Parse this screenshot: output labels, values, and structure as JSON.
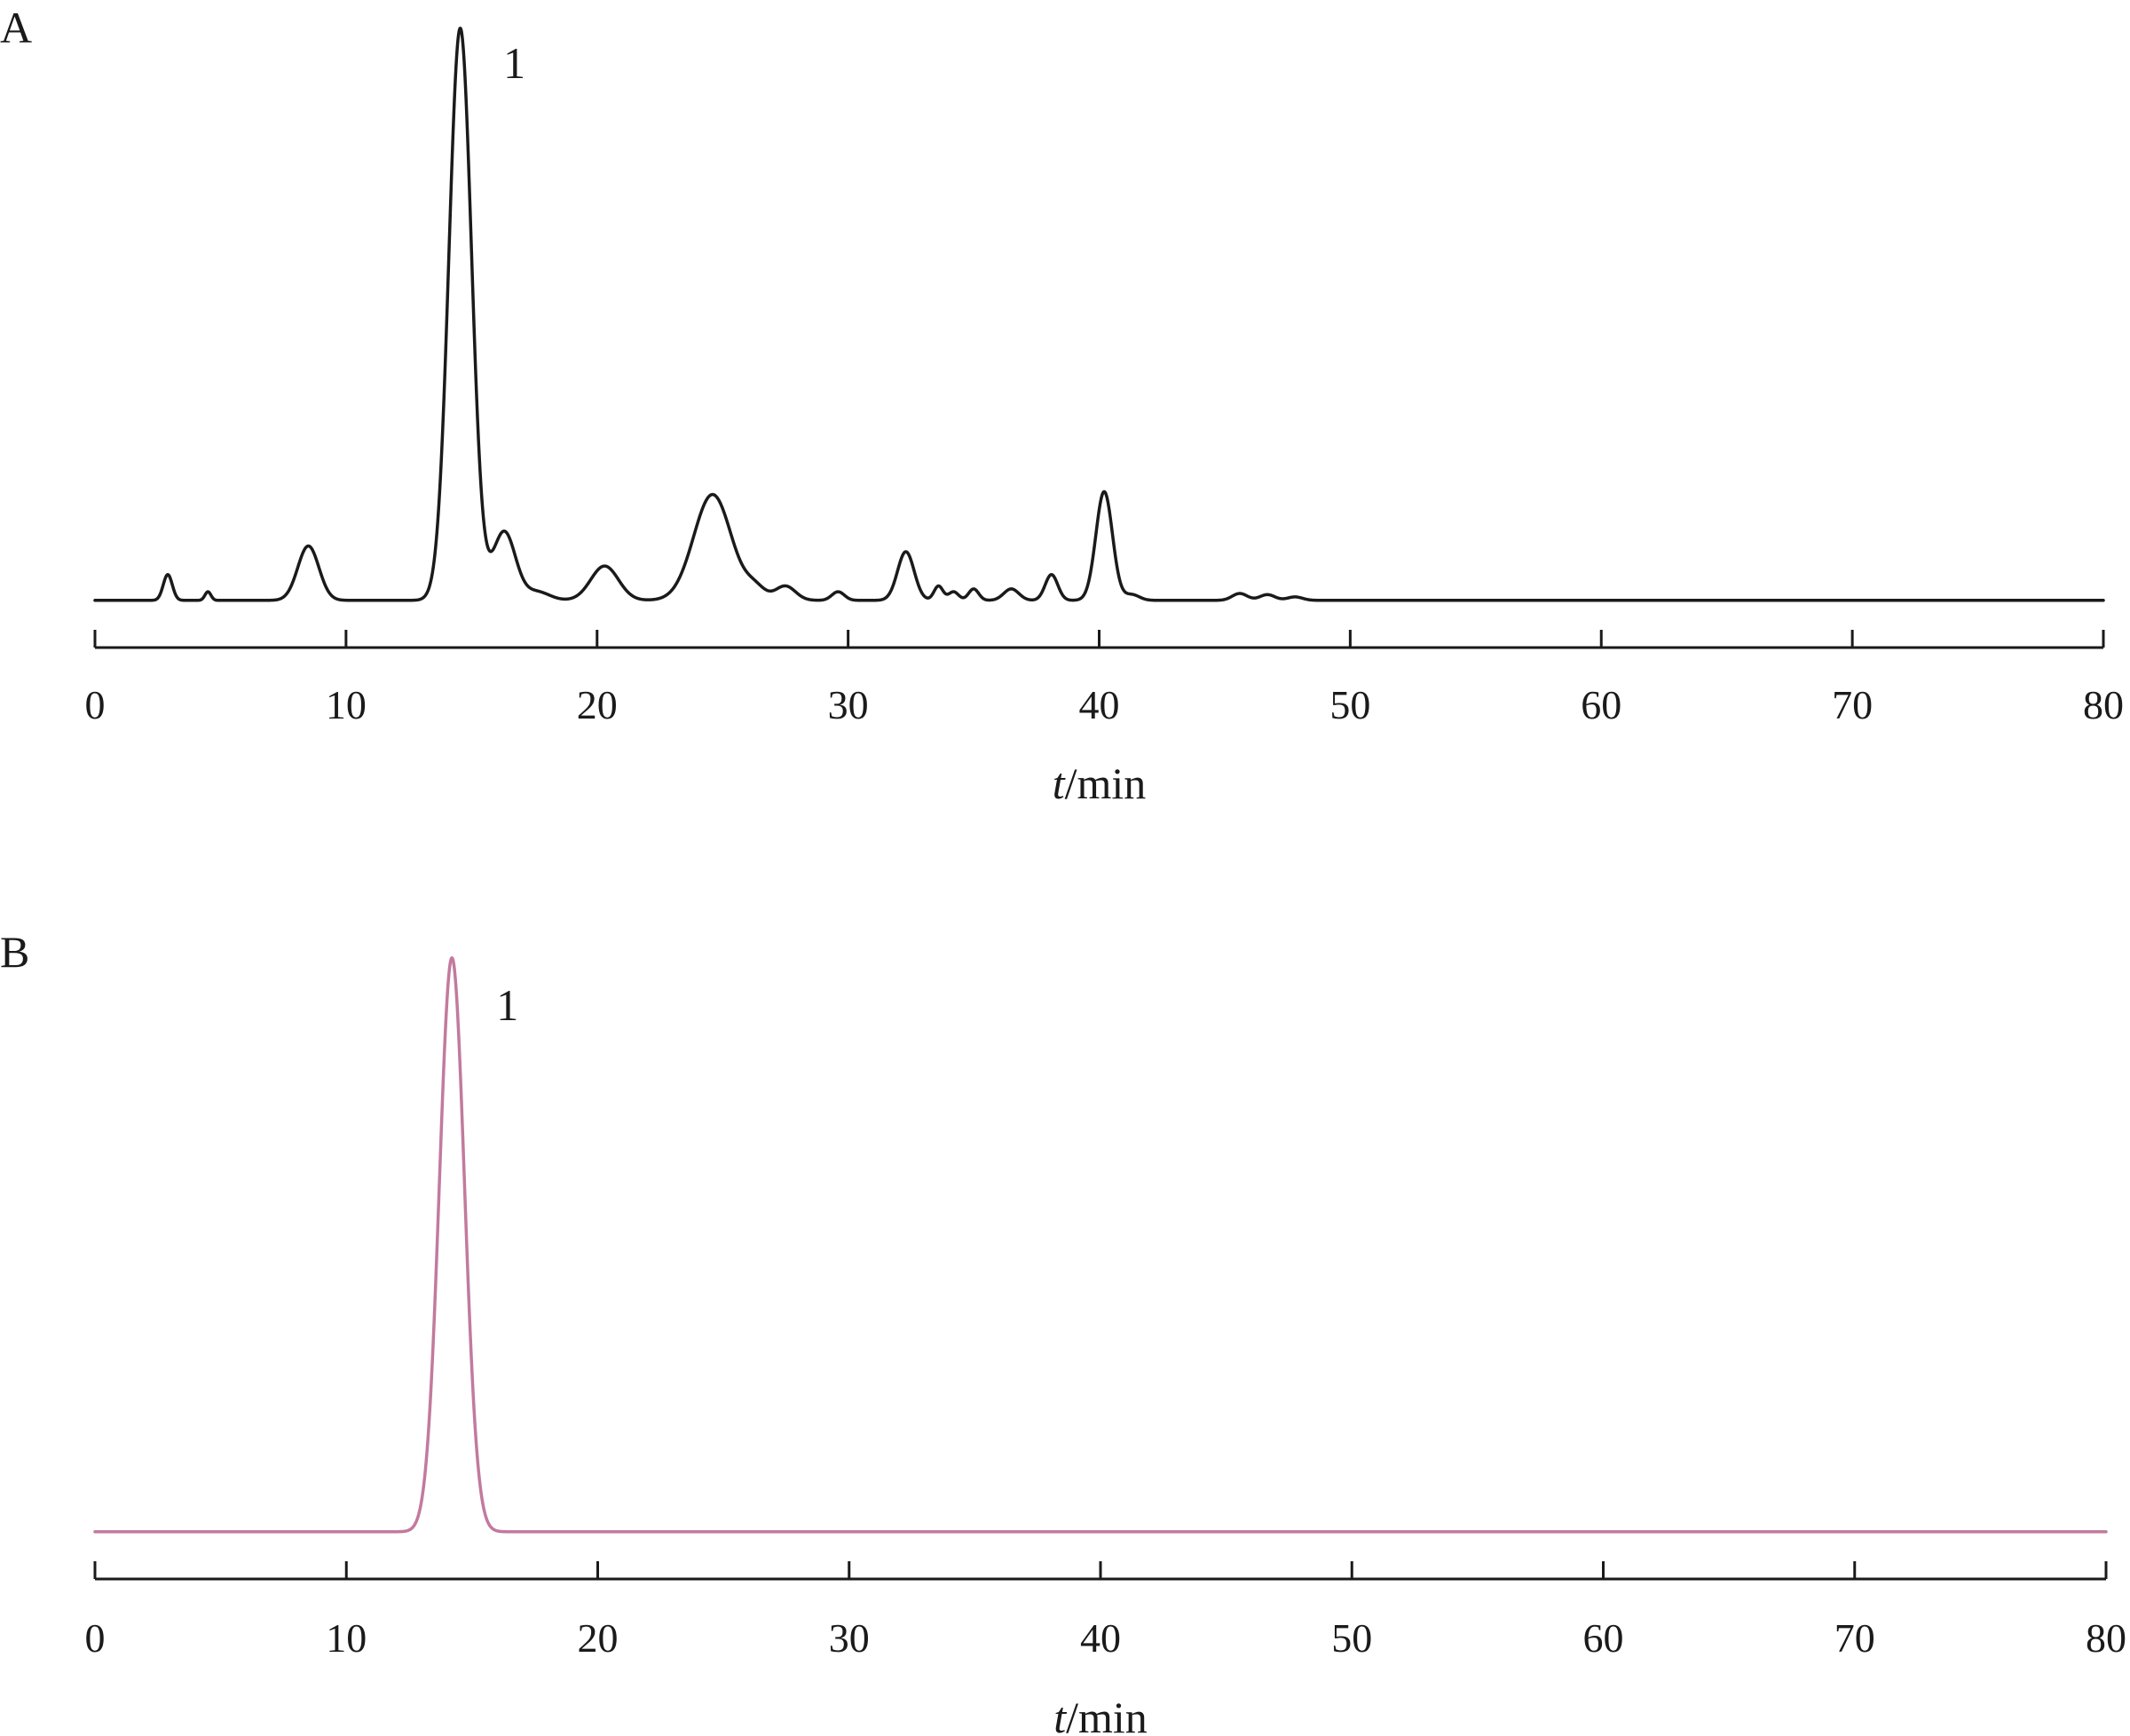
{
  "chart_data": [
    {
      "type": "line",
      "panel_label": "A",
      "xlabel_italic": "t",
      "xlabel_rest": "/min",
      "xlim": [
        0,
        80
      ],
      "xticks": [
        0,
        10,
        20,
        30,
        40,
        50,
        60,
        70,
        80
      ],
      "y_axis_shown": false,
      "color": "#1a1a1a",
      "baseline": 0.005,
      "peak_annotations": [
        {
          "label": "1",
          "x": 14.5
        }
      ],
      "peaks": [
        {
          "rt": 2.9,
          "height": 0.045,
          "width": 0.18
        },
        {
          "rt": 4.5,
          "height": 0.015,
          "width": 0.12
        },
        {
          "rt": 8.5,
          "height": 0.095,
          "width": 0.42
        },
        {
          "rt": 14.55,
          "height": 1.0,
          "width": 0.45
        },
        {
          "rt": 16.3,
          "height": 0.12,
          "width": 0.45
        },
        {
          "rt": 17.6,
          "height": 0.015,
          "width": 0.5
        },
        {
          "rt": 20.3,
          "height": 0.06,
          "width": 0.55
        },
        {
          "rt": 24.6,
          "height": 0.185,
          "width": 0.75
        },
        {
          "rt": 26.3,
          "height": 0.02,
          "width": 0.4
        },
        {
          "rt": 27.5,
          "height": 0.025,
          "width": 0.4
        },
        {
          "rt": 29.6,
          "height": 0.015,
          "width": 0.25
        },
        {
          "rt": 32.3,
          "height": 0.085,
          "width": 0.33
        },
        {
          "rt": 33.6,
          "height": 0.025,
          "width": 0.18
        },
        {
          "rt": 34.2,
          "height": 0.015,
          "width": 0.2
        },
        {
          "rt": 35.0,
          "height": 0.02,
          "width": 0.2
        },
        {
          "rt": 36.5,
          "height": 0.02,
          "width": 0.3
        },
        {
          "rt": 38.1,
          "height": 0.045,
          "width": 0.25
        },
        {
          "rt": 40.2,
          "height": 0.19,
          "width": 0.33
        },
        {
          "rt": 41.3,
          "height": 0.01,
          "width": 0.3
        },
        {
          "rt": 45.6,
          "height": 0.012,
          "width": 0.3
        },
        {
          "rt": 46.7,
          "height": 0.01,
          "width": 0.3
        },
        {
          "rt": 47.8,
          "height": 0.006,
          "width": 0.3
        }
      ]
    },
    {
      "type": "line",
      "panel_label": "B",
      "xlabel_italic": "t",
      "xlabel_rest": "/min",
      "xlim": [
        0,
        80
      ],
      "xticks": [
        0,
        10,
        20,
        30,
        40,
        50,
        60,
        70,
        80
      ],
      "y_axis_shown": false,
      "color": "#c27a9e",
      "baseline": 0.005,
      "peak_annotations": [
        {
          "label": "1",
          "x": 14.2
        }
      ],
      "peaks": [
        {
          "rt": 14.2,
          "height": 1.0,
          "width": 0.5
        }
      ]
    }
  ]
}
